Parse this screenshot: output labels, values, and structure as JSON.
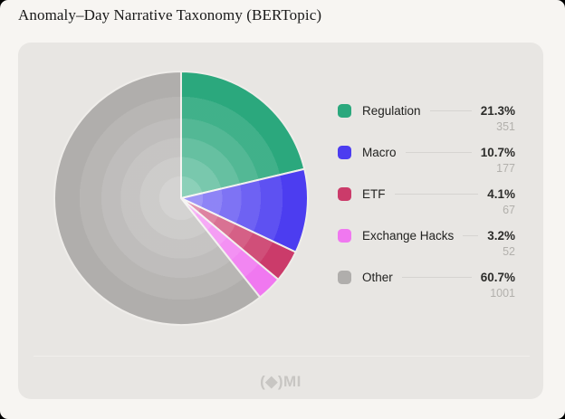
{
  "header": {
    "title": "Anomaly–Day Narrative Taxonomy (BERTopic)"
  },
  "footer": {
    "logo_text": "(◆)MI"
  },
  "chart_data": {
    "type": "pie",
    "title": "Anomaly–Day Narrative Taxonomy (BERTopic)",
    "legend_position": "right",
    "start_angle_deg": -90,
    "direction": "clockwise",
    "slices": [
      {
        "label": "Regulation",
        "percent": 21.3,
        "count": 351,
        "color": "#2BA87D"
      },
      {
        "label": "Macro",
        "percent": 10.7,
        "count": 177,
        "color": "#4C3DF0"
      },
      {
        "label": "ETF",
        "percent": 4.1,
        "count": 67,
        "color": "#CB3B6A"
      },
      {
        "label": "Exchange Hacks",
        "percent": 3.2,
        "count": 52,
        "color": "#F078F0"
      },
      {
        "label": "Other",
        "percent": 60.7,
        "count": 1001,
        "color": "#B0AEAC"
      }
    ]
  },
  "colors": {
    "page_bg": "#F7F5F2",
    "card_bg": "#E8E6E3",
    "slice_gap": "#EFEDEA",
    "leader_line": "#D6D4D1",
    "count_text": "#B2B0AC"
  }
}
